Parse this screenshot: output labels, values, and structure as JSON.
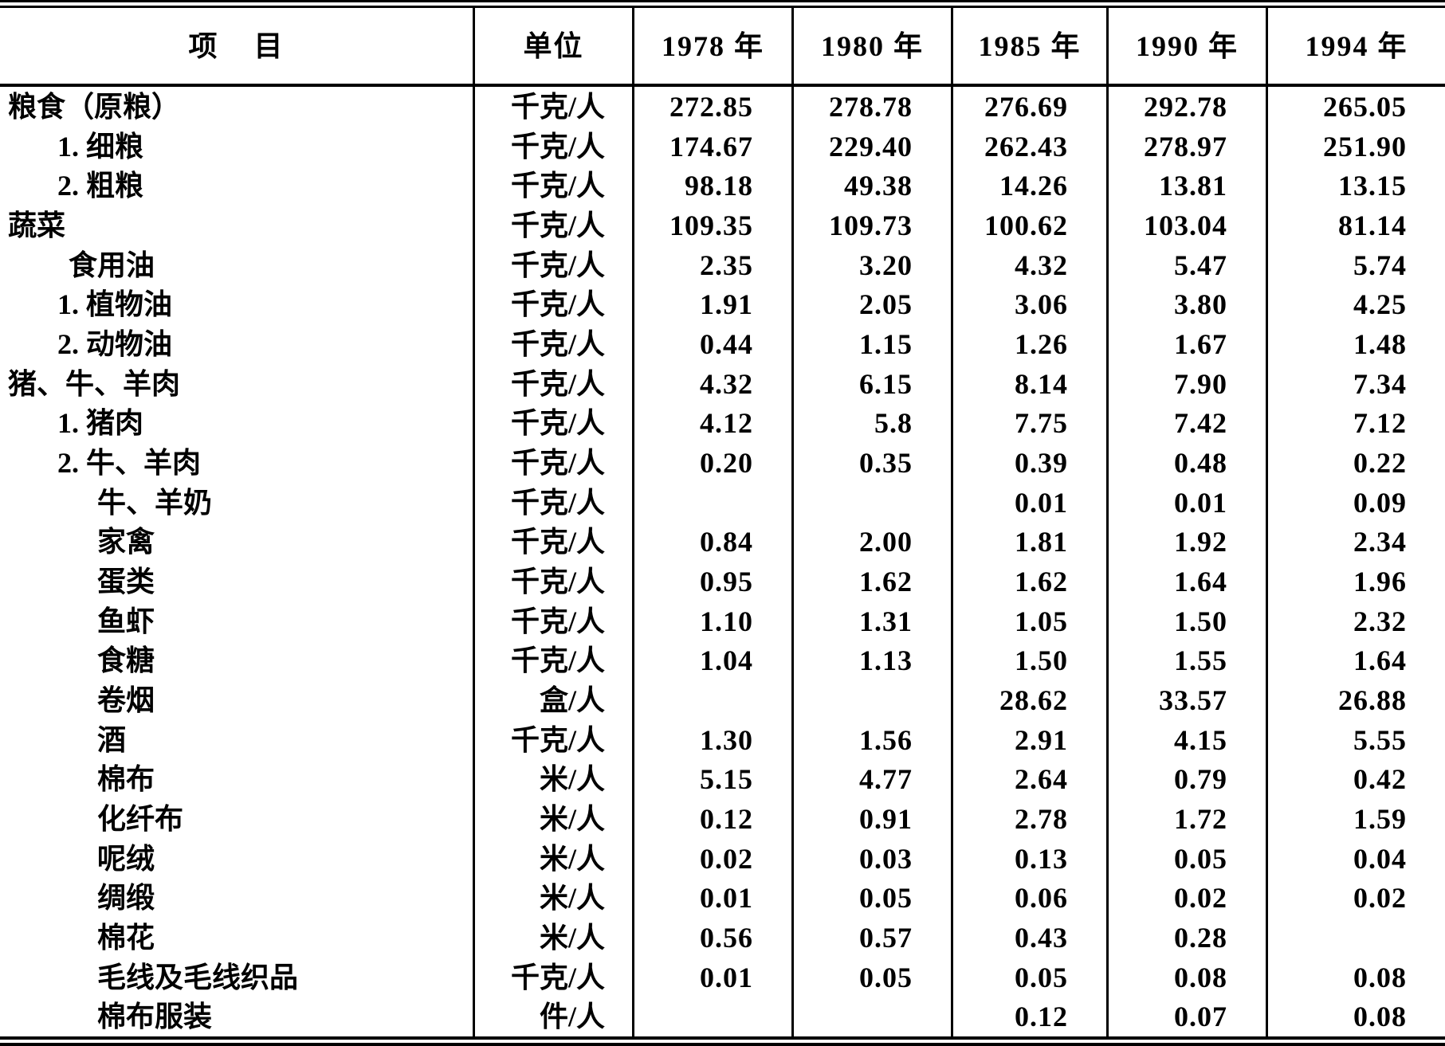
{
  "colors": {
    "ink": "#000000",
    "paper": "#ffffff",
    "border": "#000000"
  },
  "table": {
    "headers": {
      "item": "项    目",
      "unit": "单位",
      "years": [
        "1978 年",
        "1980 年",
        "1985 年",
        "1990 年",
        "1994 年"
      ]
    },
    "rows": [
      {
        "item": "粮食（原粮）",
        "indent": 0,
        "unit": "千克/人",
        "values": [
          "272.85",
          "278.78",
          "276.69",
          "292.78",
          "265.05"
        ]
      },
      {
        "item": "1. 细粮",
        "indent": 1,
        "unit": "千克/人",
        "values": [
          "174.67",
          "229.40",
          "262.43",
          "278.97",
          "251.90"
        ]
      },
      {
        "item": "2. 粗粮",
        "indent": 1,
        "unit": "千克/人",
        "values": [
          "98.18",
          "49.38",
          "14.26",
          "13.81",
          "13.15"
        ]
      },
      {
        "item": "蔬菜",
        "indent": 0,
        "unit": "千克/人",
        "values": [
          "109.35",
          "109.73",
          "100.62",
          "103.04",
          "81.14"
        ]
      },
      {
        "item": "食用油",
        "indent": 2,
        "unit": "千克/人",
        "values": [
          "2.35",
          "3.20",
          "4.32",
          "5.47",
          "5.74"
        ]
      },
      {
        "item": "1. 植物油",
        "indent": 1,
        "unit": "千克/人",
        "values": [
          "1.91",
          "2.05",
          "3.06",
          "3.80",
          "4.25"
        ]
      },
      {
        "item": "2. 动物油",
        "indent": 1,
        "unit": "千克/人",
        "values": [
          "0.44",
          "1.15",
          "1.26",
          "1.67",
          "1.48"
        ]
      },
      {
        "item": "猪、牛、羊肉",
        "indent": 0,
        "unit": "千克/人",
        "values": [
          "4.32",
          "6.15",
          "8.14",
          "7.90",
          "7.34"
        ]
      },
      {
        "item": "1. 猪肉",
        "indent": 1,
        "unit": "千克/人",
        "values": [
          "4.12",
          "5.8",
          "7.75",
          "7.42",
          "7.12"
        ]
      },
      {
        "item": "2. 牛、羊肉",
        "indent": 1,
        "unit": "千克/人",
        "values": [
          "0.20",
          "0.35",
          "0.39",
          "0.48",
          "0.22"
        ]
      },
      {
        "item": "牛、羊奶",
        "indent": 3,
        "unit": "千克/人",
        "values": [
          "",
          "",
          "0.01",
          "0.01",
          "0.09"
        ]
      },
      {
        "item": "家禽",
        "indent": 3,
        "unit": "千克/人",
        "values": [
          "0.84",
          "2.00",
          "1.81",
          "1.92",
          "2.34"
        ]
      },
      {
        "item": "蛋类",
        "indent": 3,
        "unit": "千克/人",
        "values": [
          "0.95",
          "1.62",
          "1.62",
          "1.64",
          "1.96"
        ]
      },
      {
        "item": "鱼虾",
        "indent": 3,
        "unit": "千克/人",
        "values": [
          "1.10",
          "1.31",
          "1.05",
          "1.50",
          "2.32"
        ]
      },
      {
        "item": "食糖",
        "indent": 3,
        "unit": "千克/人",
        "values": [
          "1.04",
          "1.13",
          "1.50",
          "1.55",
          "1.64"
        ]
      },
      {
        "item": "卷烟",
        "indent": 3,
        "unit": "盒/人",
        "values": [
          "",
          "",
          "28.62",
          "33.57",
          "26.88"
        ]
      },
      {
        "item": "酒",
        "indent": 3,
        "unit": "千克/人",
        "values": [
          "1.30",
          "1.56",
          "2.91",
          "4.15",
          "5.55"
        ]
      },
      {
        "item": "棉布",
        "indent": 3,
        "unit": "米/人",
        "values": [
          "5.15",
          "4.77",
          "2.64",
          "0.79",
          "0.42"
        ]
      },
      {
        "item": "化纤布",
        "indent": 3,
        "unit": "米/人",
        "values": [
          "0.12",
          "0.91",
          "2.78",
          "1.72",
          "1.59"
        ]
      },
      {
        "item": "呢绒",
        "indent": 3,
        "unit": "米/人",
        "values": [
          "0.02",
          "0.03",
          "0.13",
          "0.05",
          "0.04"
        ]
      },
      {
        "item": "绸缎",
        "indent": 3,
        "unit": "米/人",
        "values": [
          "0.01",
          "0.05",
          "0.06",
          "0.02",
          "0.02"
        ]
      },
      {
        "item": "棉花",
        "indent": 3,
        "unit": "米/人",
        "values": [
          "0.56",
          "0.57",
          "0.43",
          "0.28",
          ""
        ]
      },
      {
        "item": "毛线及毛线织品",
        "indent": 3,
        "unit": "千克/人",
        "values": [
          "0.01",
          "0.05",
          "0.05",
          "0.08",
          "0.08"
        ]
      },
      {
        "item": "棉布服装",
        "indent": 3,
        "unit": "件/人",
        "values": [
          "",
          "",
          "0.12",
          "0.07",
          "0.08"
        ]
      }
    ]
  }
}
